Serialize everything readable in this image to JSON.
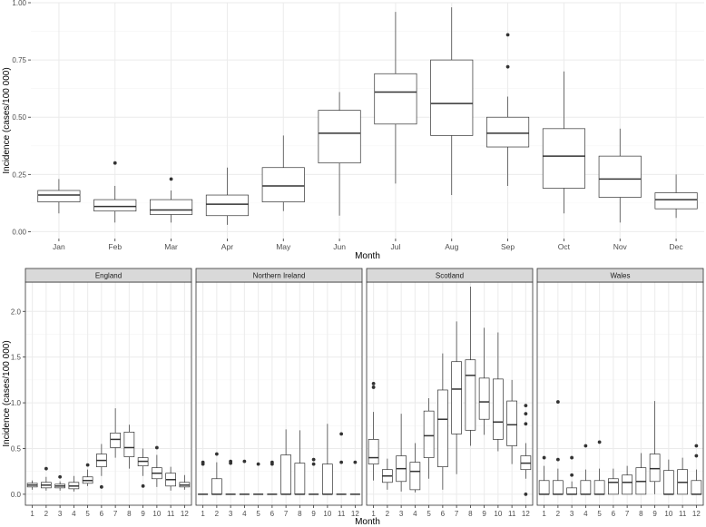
{
  "colors": {
    "panel_bg": "#ffffff",
    "grid_major": "#ebebeb",
    "grid_minor": "#f4f4f4",
    "box_line": "#333333",
    "strip_bg": "#d9d9d9",
    "text": "#4d4d4d",
    "title": "#000000"
  },
  "chart_data": [
    {
      "type": "box",
      "title": "",
      "xlabel": "Month",
      "ylabel": "Incidence (cases/100 000)",
      "ylim": [
        -0.03,
        1.0
      ],
      "yticks": [
        0,
        0.25,
        0.5,
        0.75,
        1.0
      ],
      "yticklabels": [
        "0.00",
        "0.25",
        "0.50",
        "0.75",
        "1.00"
      ],
      "grid": true,
      "categories": [
        "Jan",
        "Feb",
        "Mar",
        "Apr",
        "May",
        "Jun",
        "Jul",
        "Aug",
        "Sep",
        "Oct",
        "Nov",
        "Dec"
      ],
      "boxes": [
        {
          "min": 0.08,
          "q1": 0.13,
          "median": 0.16,
          "q3": 0.18,
          "max": 0.23,
          "outliers": []
        },
        {
          "min": 0.04,
          "q1": 0.09,
          "median": 0.11,
          "q3": 0.14,
          "max": 0.2,
          "outliers": [
            0.3
          ]
        },
        {
          "min": 0.04,
          "q1": 0.075,
          "median": 0.095,
          "q3": 0.14,
          "max": 0.18,
          "outliers": [
            0.23
          ]
        },
        {
          "min": 0.03,
          "q1": 0.07,
          "median": 0.12,
          "q3": 0.16,
          "max": 0.28,
          "outliers": []
        },
        {
          "min": 0.09,
          "q1": 0.13,
          "median": 0.2,
          "q3": 0.28,
          "max": 0.42,
          "outliers": []
        },
        {
          "min": 0.07,
          "q1": 0.3,
          "median": 0.43,
          "q3": 0.53,
          "max": 0.61,
          "outliers": []
        },
        {
          "min": 0.21,
          "q1": 0.47,
          "median": 0.61,
          "q3": 0.69,
          "max": 0.96,
          "outliers": []
        },
        {
          "min": 0.16,
          "q1": 0.42,
          "median": 0.56,
          "q3": 0.75,
          "max": 0.98,
          "outliers": []
        },
        {
          "min": 0.2,
          "q1": 0.37,
          "median": 0.43,
          "q3": 0.5,
          "max": 0.59,
          "outliers": [
            0.72,
            0.86
          ]
        },
        {
          "min": 0.08,
          "q1": 0.19,
          "median": 0.33,
          "q3": 0.45,
          "max": 0.7,
          "outliers": []
        },
        {
          "min": 0.04,
          "q1": 0.15,
          "median": 0.23,
          "q3": 0.33,
          "max": 0.45,
          "outliers": []
        },
        {
          "min": 0.06,
          "q1": 0.1,
          "median": 0.14,
          "q3": 0.17,
          "max": 0.25,
          "outliers": []
        }
      ]
    },
    {
      "type": "box",
      "facets": true,
      "title": "",
      "xlabel": "Month",
      "ylabel": "Incidence (cases/100 000)",
      "ylim": [
        -0.12,
        2.32
      ],
      "yticks": [
        0,
        0.5,
        1.0,
        1.5,
        2.0
      ],
      "yticklabels": [
        "0.0",
        "0.5",
        "1.0",
        "1.5",
        "2.0"
      ],
      "grid": true,
      "categories": [
        "1",
        "2",
        "3",
        "4",
        "5",
        "6",
        "7",
        "8",
        "9",
        "10",
        "11",
        "12"
      ],
      "panels": [
        {
          "name": "England",
          "boxes": [
            {
              "min": 0.05,
              "q1": 0.08,
              "median": 0.1,
              "q3": 0.12,
              "max": 0.15,
              "outliers": []
            },
            {
              "min": 0.04,
              "q1": 0.07,
              "median": 0.1,
              "q3": 0.13,
              "max": 0.19,
              "outliers": [
                0.28
              ]
            },
            {
              "min": 0.04,
              "q1": 0.07,
              "median": 0.09,
              "q3": 0.11,
              "max": 0.14,
              "outliers": [
                0.19
              ]
            },
            {
              "min": 0.03,
              "q1": 0.06,
              "median": 0.09,
              "q3": 0.13,
              "max": 0.2,
              "outliers": []
            },
            {
              "min": 0.09,
              "q1": 0.12,
              "median": 0.15,
              "q3": 0.19,
              "max": 0.27,
              "outliers": [
                0.32
              ]
            },
            {
              "min": 0.2,
              "q1": 0.3,
              "median": 0.37,
              "q3": 0.44,
              "max": 0.55,
              "outliers": [
                0.08
              ]
            },
            {
              "min": 0.4,
              "q1": 0.51,
              "median": 0.6,
              "q3": 0.67,
              "max": 0.94,
              "outliers": []
            },
            {
              "min": 0.28,
              "q1": 0.41,
              "median": 0.51,
              "q3": 0.68,
              "max": 0.76,
              "outliers": []
            },
            {
              "min": 0.2,
              "q1": 0.31,
              "median": 0.36,
              "q3": 0.4,
              "max": 0.5,
              "outliers": [
                0.09
              ]
            },
            {
              "min": 0.08,
              "q1": 0.17,
              "median": 0.23,
              "q3": 0.29,
              "max": 0.43,
              "outliers": [
                0.51
              ]
            },
            {
              "min": 0.04,
              "q1": 0.09,
              "median": 0.16,
              "q3": 0.23,
              "max": 0.3,
              "outliers": []
            },
            {
              "min": 0.05,
              "q1": 0.08,
              "median": 0.1,
              "q3": 0.13,
              "max": 0.21,
              "outliers": []
            }
          ]
        },
        {
          "name": "Northern Ireland",
          "boxes": [
            {
              "min": 0,
              "q1": 0,
              "median": 0,
              "q3": 0,
              "max": 0,
              "outliers": [
                0.33,
                0.35
              ]
            },
            {
              "min": 0,
              "q1": 0,
              "median": 0,
              "q3": 0.17,
              "max": 0.35,
              "outliers": [
                0.44
              ]
            },
            {
              "min": 0,
              "q1": 0,
              "median": 0,
              "q3": 0,
              "max": 0,
              "outliers": [
                0.34,
                0.36
              ]
            },
            {
              "min": 0,
              "q1": 0,
              "median": 0,
              "q3": 0,
              "max": 0,
              "outliers": [
                0.36
              ]
            },
            {
              "min": 0,
              "q1": 0,
              "median": 0,
              "q3": 0,
              "max": 0,
              "outliers": [
                0.33
              ]
            },
            {
              "min": 0,
              "q1": 0,
              "median": 0,
              "q3": 0,
              "max": 0,
              "outliers": [
                0.33,
                0.35
              ]
            },
            {
              "min": 0,
              "q1": 0,
              "median": 0,
              "q3": 0.43,
              "max": 0.71,
              "outliers": []
            },
            {
              "min": 0,
              "q1": 0,
              "median": 0,
              "q3": 0.34,
              "max": 0.7,
              "outliers": []
            },
            {
              "min": 0,
              "q1": 0,
              "median": 0,
              "q3": 0,
              "max": 0,
              "outliers": [
                0.33,
                0.38
              ]
            },
            {
              "min": 0,
              "q1": 0,
              "median": 0,
              "q3": 0.33,
              "max": 0.77,
              "outliers": []
            },
            {
              "min": 0,
              "q1": 0,
              "median": 0,
              "q3": 0,
              "max": 0,
              "outliers": [
                0.35,
                0.66
              ]
            },
            {
              "min": 0,
              "q1": 0,
              "median": 0,
              "q3": 0,
              "max": 0,
              "outliers": [
                0.35
              ]
            }
          ]
        },
        {
          "name": "Scotland",
          "boxes": [
            {
              "min": 0.15,
              "q1": 0.33,
              "median": 0.4,
              "q3": 0.6,
              "max": 0.9,
              "outliers": [
                1.17,
                1.21
              ]
            },
            {
              "min": 0.05,
              "q1": 0.13,
              "median": 0.2,
              "q3": 0.27,
              "max": 0.39,
              "outliers": []
            },
            {
              "min": 0.03,
              "q1": 0.14,
              "median": 0.28,
              "q3": 0.42,
              "max": 0.88,
              "outliers": []
            },
            {
              "min": 0.02,
              "q1": 0.05,
              "median": 0.25,
              "q3": 0.35,
              "max": 0.56,
              "outliers": []
            },
            {
              "min": 0.17,
              "q1": 0.4,
              "median": 0.64,
              "q3": 0.91,
              "max": 1.05,
              "outliers": []
            },
            {
              "min": 0.05,
              "q1": 0.3,
              "median": 0.82,
              "q3": 1.14,
              "max": 1.54,
              "outliers": []
            },
            {
              "min": 0.22,
              "q1": 0.66,
              "median": 1.15,
              "q3": 1.45,
              "max": 1.89,
              "outliers": []
            },
            {
              "min": 0.53,
              "q1": 0.7,
              "median": 1.3,
              "q3": 1.47,
              "max": 2.27,
              "outliers": []
            },
            {
              "min": 0.65,
              "q1": 0.82,
              "median": 1.01,
              "q3": 1.27,
              "max": 1.82,
              "outliers": []
            },
            {
              "min": 0.47,
              "q1": 0.6,
              "median": 0.79,
              "q3": 1.26,
              "max": 1.77,
              "outliers": []
            },
            {
              "min": 0.33,
              "q1": 0.53,
              "median": 0.76,
              "q3": 1.02,
              "max": 1.25,
              "outliers": []
            },
            {
              "min": 0.17,
              "q1": 0.27,
              "median": 0.34,
              "q3": 0.42,
              "max": 0.56,
              "outliers": [
                0.0,
                0.77,
                0.88,
                0.97
              ]
            }
          ]
        },
        {
          "name": "Wales",
          "boxes": [
            {
              "min": 0,
              "q1": 0,
              "median": 0,
              "q3": 0.15,
              "max": 0.31,
              "outliers": [
                0.4
              ]
            },
            {
              "min": 0,
              "q1": 0,
              "median": 0,
              "q3": 0.15,
              "max": 0.28,
              "outliers": [
                0.38,
                1.01
              ]
            },
            {
              "min": 0,
              "q1": 0,
              "median": 0,
              "q3": 0.07,
              "max": 0.14,
              "outliers": [
                0.21,
                0.4
              ]
            },
            {
              "min": 0,
              "q1": 0,
              "median": 0,
              "q3": 0.15,
              "max": 0.27,
              "outliers": [
                0.53
              ]
            },
            {
              "min": 0,
              "q1": 0,
              "median": 0,
              "q3": 0.15,
              "max": 0.28,
              "outliers": [
                0.57
              ]
            },
            {
              "min": 0,
              "q1": 0,
              "median": 0.13,
              "q3": 0.17,
              "max": 0.28,
              "outliers": []
            },
            {
              "min": 0,
              "q1": 0,
              "median": 0.13,
              "q3": 0.21,
              "max": 0.31,
              "outliers": []
            },
            {
              "min": 0,
              "q1": 0,
              "median": 0.14,
              "q3": 0.29,
              "max": 0.45,
              "outliers": []
            },
            {
              "min": 0,
              "q1": 0.14,
              "median": 0.28,
              "q3": 0.44,
              "max": 1.02,
              "outliers": []
            },
            {
              "min": 0,
              "q1": 0,
              "median": 0,
              "q3": 0.26,
              "max": 0.38,
              "outliers": []
            },
            {
              "min": 0,
              "q1": 0,
              "median": 0.13,
              "q3": 0.27,
              "max": 0.4,
              "outliers": []
            },
            {
              "min": 0,
              "q1": 0,
              "median": 0,
              "q3": 0.15,
              "max": 0.27,
              "outliers": [
                0.42,
                0.53
              ]
            }
          ]
        }
      ]
    }
  ]
}
